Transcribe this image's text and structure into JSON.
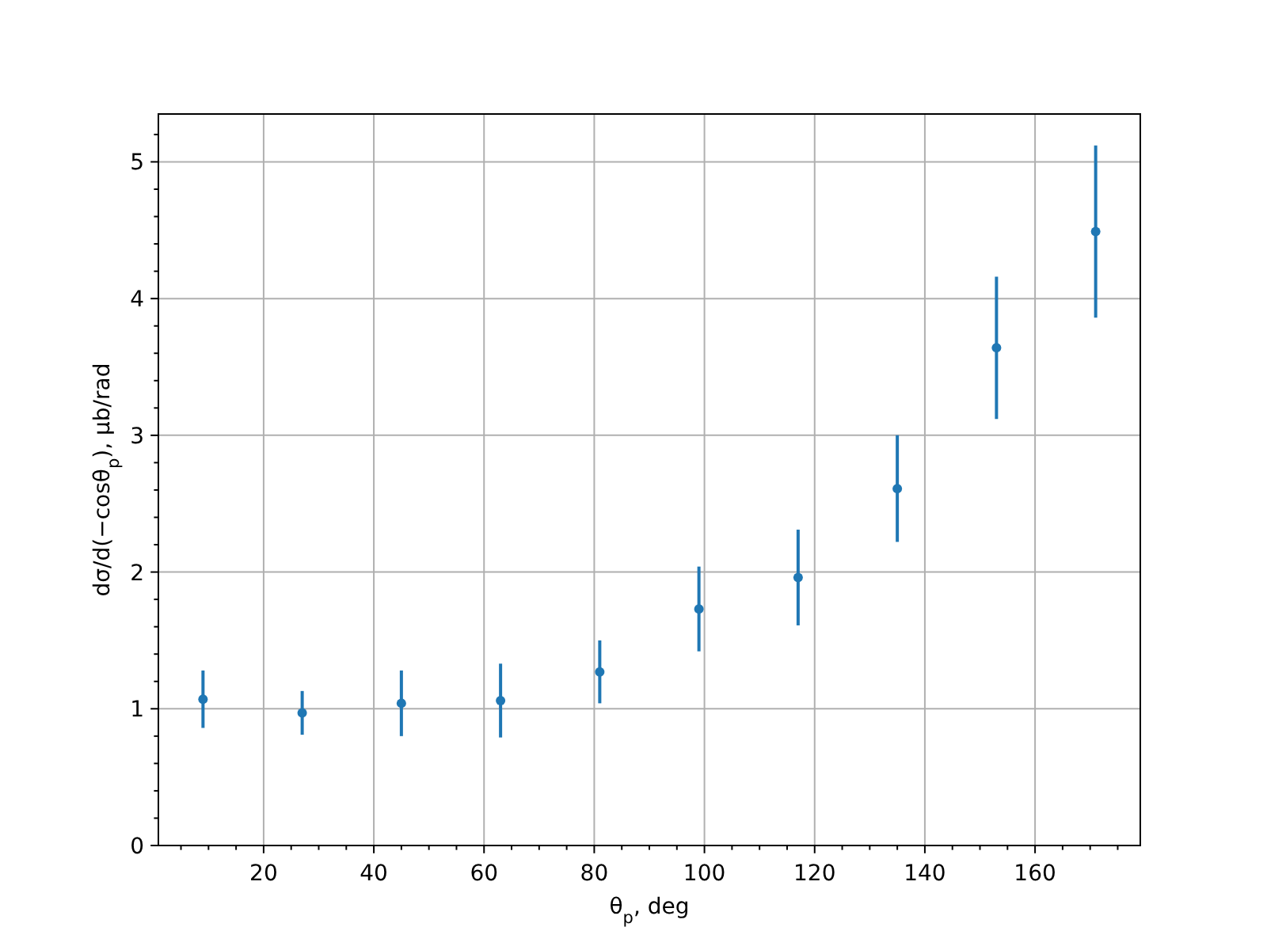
{
  "chart_data": {
    "type": "scatter",
    "xlabel": "θ$_{p}$, deg",
    "ylabel": "dσ/d(−cosθ$_{p}$), μb/rad",
    "x": [
      9,
      27,
      45,
      63,
      81,
      99,
      117,
      135,
      153,
      171
    ],
    "values": [
      1.07,
      0.97,
      1.04,
      1.06,
      1.27,
      1.73,
      1.96,
      2.61,
      3.64,
      4.49
    ],
    "errors": [
      0.21,
      0.16,
      0.24,
      0.27,
      0.23,
      0.31,
      0.35,
      0.39,
      0.52,
      0.63
    ],
    "color": "#1f77b4",
    "marker": "circle",
    "grid": true,
    "xlim": [
      0.9,
      179.1
    ],
    "xticks": [
      {
        "value": 5,
        "label": null
      },
      {
        "value": 10,
        "label": null
      },
      {
        "value": 15,
        "label": null
      },
      20,
      {
        "value": 25,
        "label": null
      },
      {
        "value": 30,
        "label": null
      },
      {
        "value": 35,
        "label": null
      },
      40,
      {
        "value": 45,
        "label": null
      },
      {
        "value": 50,
        "label": null
      },
      {
        "value": 55,
        "label": null
      },
      60,
      {
        "value": 65,
        "label": null
      },
      {
        "value": 70,
        "label": null
      },
      {
        "value": 75,
        "label": null
      },
      80,
      {
        "value": 85,
        "label": null
      },
      {
        "value": 90,
        "label": null
      },
      {
        "value": 95,
        "label": null
      },
      100,
      {
        "value": 105,
        "label": null
      },
      {
        "value": 110,
        "label": null
      },
      {
        "value": 115,
        "label": null
      },
      120,
      {
        "value": 125,
        "label": null
      },
      {
        "value": 130,
        "label": null
      },
      {
        "value": 135,
        "label": null
      },
      140,
      {
        "value": 145,
        "label": null
      },
      {
        "value": 150,
        "label": null
      },
      {
        "value": 155,
        "label": null
      },
      160,
      {
        "value": 165,
        "label": null
      },
      {
        "value": 170,
        "label": null
      },
      {
        "value": 175,
        "label": null
      }
    ],
    "ylim": [
      0,
      5.35
    ],
    "yticks": [
      0,
      {
        "value": 0.2,
        "label": null
      },
      {
        "value": 0.4,
        "label": null
      },
      {
        "value": 0.6,
        "label": null
      },
      {
        "value": 0.8,
        "label": null
      },
      1,
      {
        "value": 1.2,
        "label": null
      },
      {
        "value": 1.4,
        "label": null
      },
      {
        "value": 1.6,
        "label": null
      },
      {
        "value": 1.8,
        "label": null
      },
      2,
      {
        "value": 2.2,
        "label": null
      },
      {
        "value": 2.4,
        "label": null
      },
      {
        "value": 2.6,
        "label": null
      },
      {
        "value": 2.8,
        "label": null
      },
      3,
      {
        "value": 3.2,
        "label": null
      },
      {
        "value": 3.4,
        "label": null
      },
      {
        "value": 3.6,
        "label": null
      },
      {
        "value": 3.8,
        "label": null
      },
      4,
      {
        "value": 4.2,
        "label": null
      },
      {
        "value": 4.4,
        "label": null
      },
      {
        "value": 4.6,
        "label": null
      },
      {
        "value": 4.8,
        "label": null
      },
      5,
      {
        "value": 5.2,
        "label": null
      }
    ]
  }
}
